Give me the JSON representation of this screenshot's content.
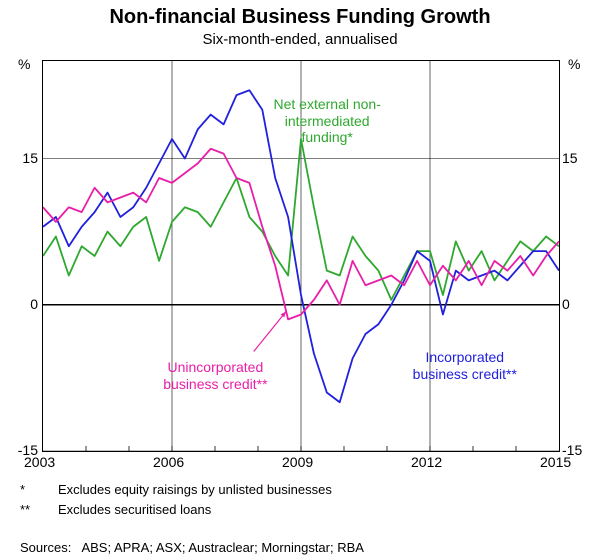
{
  "title": "Non-financial Business Funding Growth",
  "subtitle": "Six-month-ended, annualised",
  "unit": "%",
  "chart": {
    "type": "line",
    "xlim": [
      2003,
      2015
    ],
    "ylim": [
      -15,
      25
    ],
    "yticks": [
      -15,
      0,
      15
    ],
    "xticks": [
      2003,
      2006,
      2009,
      2012,
      2015
    ],
    "background_color": "#ffffff",
    "grid_color": "#000000",
    "zero_line_width": 1.5,
    "series": [
      {
        "name": "Net external non-intermediated funding",
        "color": "#2ea82e",
        "label": "Net external non-intermediated\nfunding*",
        "label_pos": {
          "x": 2009.4,
          "y": 20.5
        },
        "data": [
          [
            2003.0,
            5
          ],
          [
            2003.3,
            7
          ],
          [
            2003.6,
            3
          ],
          [
            2003.9,
            6
          ],
          [
            2004.2,
            5
          ],
          [
            2004.5,
            7.5
          ],
          [
            2004.8,
            6
          ],
          [
            2005.1,
            8
          ],
          [
            2005.4,
            9
          ],
          [
            2005.7,
            4.5
          ],
          [
            2006.0,
            8.5
          ],
          [
            2006.3,
            10
          ],
          [
            2006.6,
            9.5
          ],
          [
            2006.9,
            8
          ],
          [
            2007.2,
            10.5
          ],
          [
            2007.5,
            13
          ],
          [
            2007.8,
            9
          ],
          [
            2008.1,
            7.5
          ],
          [
            2008.4,
            5
          ],
          [
            2008.7,
            3
          ],
          [
            2009.0,
            17
          ],
          [
            2009.3,
            10
          ],
          [
            2009.6,
            3.5
          ],
          [
            2009.9,
            3
          ],
          [
            2010.2,
            7
          ],
          [
            2010.5,
            5
          ],
          [
            2010.8,
            3.5
          ],
          [
            2011.1,
            0.5
          ],
          [
            2011.4,
            3
          ],
          [
            2011.7,
            5.5
          ],
          [
            2012.0,
            5.5
          ],
          [
            2012.3,
            1
          ],
          [
            2012.6,
            6.5
          ],
          [
            2012.9,
            3.5
          ],
          [
            2013.2,
            5.5
          ],
          [
            2013.5,
            2.5
          ],
          [
            2013.8,
            4.5
          ],
          [
            2014.1,
            6.5
          ],
          [
            2014.4,
            5.5
          ],
          [
            2014.7,
            7
          ],
          [
            2015.0,
            6
          ]
        ]
      },
      {
        "name": "Incorporated business credit",
        "color": "#2020dd",
        "label": "Incorporated\nbusiness credit**",
        "label_pos": {
          "x": 2012.6,
          "y": -5.5
        },
        "data": [
          [
            2003.0,
            8
          ],
          [
            2003.3,
            9
          ],
          [
            2003.6,
            6
          ],
          [
            2003.9,
            8
          ],
          [
            2004.2,
            9.5
          ],
          [
            2004.5,
            11.5
          ],
          [
            2004.8,
            9
          ],
          [
            2005.1,
            10
          ],
          [
            2005.4,
            12
          ],
          [
            2005.7,
            14.5
          ],
          [
            2006.0,
            17
          ],
          [
            2006.3,
            15
          ],
          [
            2006.6,
            18
          ],
          [
            2006.9,
            19.5
          ],
          [
            2007.2,
            18.5
          ],
          [
            2007.5,
            21.5
          ],
          [
            2007.8,
            22
          ],
          [
            2008.1,
            20
          ],
          [
            2008.4,
            13
          ],
          [
            2008.7,
            9
          ],
          [
            2009.0,
            1
          ],
          [
            2009.3,
            -5
          ],
          [
            2009.6,
            -9
          ],
          [
            2009.9,
            -10
          ],
          [
            2010.2,
            -5.5
          ],
          [
            2010.5,
            -3
          ],
          [
            2010.8,
            -2
          ],
          [
            2011.1,
            0
          ],
          [
            2011.4,
            2.5
          ],
          [
            2011.7,
            5.5
          ],
          [
            2012.0,
            4.5
          ],
          [
            2012.3,
            -1
          ],
          [
            2012.6,
            3.5
          ],
          [
            2012.9,
            2.5
          ],
          [
            2013.2,
            3
          ],
          [
            2013.5,
            3.5
          ],
          [
            2013.8,
            2.5
          ],
          [
            2014.1,
            4
          ],
          [
            2014.4,
            5.5
          ],
          [
            2014.7,
            5.5
          ],
          [
            2015.0,
            3.5
          ]
        ]
      },
      {
        "name": "Unincorporated business credit",
        "color": "#e81ea8",
        "label": "Unincorporated\nbusiness credit**",
        "label_pos": {
          "x": 2006.8,
          "y": -6.5
        },
        "arrow": {
          "from": [
            2007.9,
            -4.8
          ],
          "to": [
            2008.65,
            -0.7
          ]
        },
        "data": [
          [
            2003.0,
            10
          ],
          [
            2003.3,
            8.5
          ],
          [
            2003.6,
            10
          ],
          [
            2003.9,
            9.5
          ],
          [
            2004.2,
            12
          ],
          [
            2004.5,
            10.5
          ],
          [
            2004.8,
            11
          ],
          [
            2005.1,
            11.5
          ],
          [
            2005.4,
            10.5
          ],
          [
            2005.7,
            13
          ],
          [
            2006.0,
            12.5
          ],
          [
            2006.3,
            13.5
          ],
          [
            2006.6,
            14.5
          ],
          [
            2006.9,
            16
          ],
          [
            2007.2,
            15.5
          ],
          [
            2007.5,
            13
          ],
          [
            2007.8,
            12.5
          ],
          [
            2008.1,
            8
          ],
          [
            2008.4,
            4
          ],
          [
            2008.7,
            -1.5
          ],
          [
            2009.0,
            -1
          ],
          [
            2009.3,
            0.5
          ],
          [
            2009.6,
            2.5
          ],
          [
            2009.9,
            0
          ],
          [
            2010.2,
            4.5
          ],
          [
            2010.5,
            2
          ],
          [
            2010.8,
            2.5
          ],
          [
            2011.1,
            3
          ],
          [
            2011.4,
            2
          ],
          [
            2011.7,
            4.5
          ],
          [
            2012.0,
            2
          ],
          [
            2012.3,
            4
          ],
          [
            2012.6,
            2.5
          ],
          [
            2012.9,
            4.5
          ],
          [
            2013.2,
            2
          ],
          [
            2013.5,
            4.5
          ],
          [
            2013.8,
            3.5
          ],
          [
            2014.1,
            5
          ],
          [
            2014.4,
            3
          ],
          [
            2014.7,
            5
          ],
          [
            2015.0,
            6.5
          ]
        ]
      }
    ]
  },
  "footnotes": [
    {
      "key": "*",
      "text": "Excludes equity raisings by unlisted businesses"
    },
    {
      "key": "**",
      "text": "Excludes securitised loans"
    }
  ],
  "sources_label": "Sources:",
  "sources": "ABS; APRA; ASX; Austraclear; Morningstar; RBA"
}
